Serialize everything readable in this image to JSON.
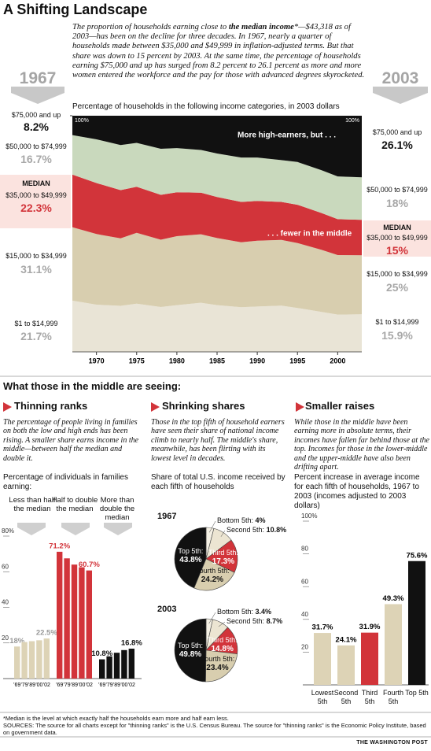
{
  "header": {
    "title": "A Shifting Landscape",
    "intro": [
      "The proportion of households earning close to ",
      "the median income",
      "*—$43,318 as of 2003—has been on the decline for three decades. In 1967, nearly a quarter of households made between $35,000 and $49,999 in inflation-adjusted terms. But that share was down to 15 percent by 2003. At the same time, the percentage of households earning $75,000 and up has surged from 8.2 percent to 26.1 percent as more and more women entered the workforce and the pay for those with advanced degrees skyrocketed."
    ]
  },
  "chart_data": [
    {
      "type": "area",
      "stacked": true,
      "subtitle": "Percentage of households in the following income categories, in 2003 dollars",
      "median_label": "MEDIAN",
      "annotations": [
        "More high-earners, but . . .",
        ". . . fewer in the middle"
      ],
      "x": [
        1967,
        1970,
        1973,
        1975,
        1978,
        1980,
        1983,
        1985,
        1988,
        1990,
        1993,
        1995,
        1998,
        2000,
        2003
      ],
      "xlim": [
        1967,
        2003
      ],
      "xticks": [
        1970,
        1975,
        1980,
        1985,
        1990,
        1995,
        2000
      ],
      "ylim": [
        0,
        100
      ],
      "yticks": [
        {
          "value": 100,
          "label": "100%"
        }
      ],
      "series": [
        {
          "name": "$1 to $14,999",
          "color": "#e9e4d6",
          "values": [
            21.7,
            20.0,
            19.5,
            20.4,
            19.0,
            19.8,
            20.8,
            19.8,
            18.9,
            19.2,
            19.6,
            18.6,
            16.9,
            15.8,
            15.9
          ],
          "value_labels": [
            "21.7%",
            null,
            null,
            null,
            null,
            null,
            null,
            null,
            null,
            null,
            null,
            null,
            null,
            null,
            "15.9%"
          ]
        },
        {
          "name": "$15,000 to $34,999",
          "color": "#d8ceaf",
          "values": [
            31.1,
            29.9,
            28.6,
            30.0,
            28.5,
            29.2,
            29.0,
            28.4,
            27.5,
            27.9,
            27.8,
            27.5,
            26.3,
            25.2,
            25.0
          ],
          "value_labels": [
            "31.1%",
            null,
            null,
            null,
            null,
            null,
            null,
            null,
            null,
            null,
            null,
            null,
            null,
            null,
            "25%"
          ]
        },
        {
          "name": "$35,000 to $49,999",
          "color": "#d2343a",
          "values": [
            22.3,
            21.6,
            20.4,
            19.5,
            19.0,
            18.6,
            17.6,
            17.4,
            17.1,
            16.8,
            16.1,
            16.2,
            15.6,
            15.2,
            15.0
          ],
          "value_labels": [
            "22.3%",
            null,
            null,
            null,
            null,
            null,
            null,
            null,
            null,
            null,
            null,
            null,
            null,
            null,
            "15%"
          ]
        },
        {
          "name": "$50,000 to $74,999",
          "color": "#c9d9bd",
          "values": [
            16.7,
            18.5,
            19.1,
            18.6,
            19.5,
            18.7,
            18.1,
            18.4,
            18.8,
            18.4,
            17.7,
            18.1,
            18.1,
            18.1,
            18.0
          ],
          "value_labels": [
            "16.7%",
            null,
            null,
            null,
            null,
            null,
            null,
            null,
            null,
            null,
            null,
            null,
            null,
            null,
            "18%"
          ]
        },
        {
          "name": "$75,000 and up",
          "color": "#111111",
          "values": [
            8.2,
            10.0,
            12.4,
            11.5,
            14.0,
            13.7,
            14.5,
            16.0,
            17.7,
            17.7,
            18.8,
            19.6,
            23.1,
            25.7,
            26.1
          ],
          "value_labels": [
            "8.2%",
            null,
            null,
            null,
            null,
            null,
            null,
            null,
            null,
            null,
            null,
            null,
            null,
            null,
            "26.1%"
          ]
        }
      ]
    },
    {
      "type": "bar",
      "heading": "Thinning ranks",
      "description": "The percentage of people living in families on both the low and high ends has been rising. A smaller share earns income in the middle—between half the median and double it.",
      "subtitle": "Percentage of individuals in families earning:",
      "categories": [
        "'69",
        "'79",
        "'89",
        "'00",
        "'02"
      ],
      "ylim": [
        0,
        80
      ],
      "yticks": [
        20,
        40,
        60,
        {
          "value": 80,
          "label": "80%"
        }
      ],
      "series": [
        {
          "name": "Less than half the median",
          "color": "#ddd3b6",
          "values": [
            18,
            20.5,
            21,
            21.5,
            22.5
          ],
          "value_labels": [
            "18%",
            null,
            null,
            null,
            "22.5%"
          ]
        },
        {
          "name": "Half to double the median",
          "color": "#d2343a",
          "values": [
            71.2,
            67.5,
            64,
            62.5,
            60.7
          ],
          "value_labels": [
            "71.2%",
            null,
            null,
            null,
            "60.7%"
          ]
        },
        {
          "name": "More than double the median",
          "color": "#111111",
          "values": [
            10.8,
            12.5,
            14.5,
            16,
            16.8
          ],
          "value_labels": [
            "10.8%",
            null,
            null,
            null,
            "16.8%"
          ]
        }
      ]
    },
    {
      "type": "pie",
      "heading": "Shrinking shares",
      "description": "Those in the top fifth of household earners have seen their share of national income climb to nearly half. The middle's share, meanwhile, has been flirting with its lowest level in decades.",
      "subtitle": "Share of total U.S. income received by each fifth of households",
      "title": "1967",
      "categories": [
        "Bottom 5th:",
        "Second 5th:",
        "Third 5th:",
        "Fourth 5th:",
        "Top 5th:"
      ],
      "values": [
        4,
        10.8,
        17.3,
        24.2,
        43.8
      ],
      "value_labels": [
        "4%",
        "10.8%",
        "17.3%",
        "24.2%",
        "43.8%"
      ],
      "colors": [
        "#f4f0e4",
        "#ece5d2",
        "#d2343a",
        "#d8ceaf",
        "#111111"
      ]
    },
    {
      "type": "pie",
      "title": "2003",
      "categories": [
        "Bottom 5th:",
        "Second 5th:",
        "Third 5th:",
        "Fourth 5th:",
        "Top 5th:"
      ],
      "values": [
        3.4,
        8.7,
        14.8,
        23.4,
        49.8
      ],
      "value_labels": [
        "3.4%",
        "8.7%",
        "14.8%",
        "23.4%",
        "49.8%"
      ],
      "colors": [
        "#f4f0e4",
        "#ece5d2",
        "#d2343a",
        "#d8ceaf",
        "#111111"
      ]
    },
    {
      "type": "bar",
      "heading": "Smaller raises",
      "description": "While those in the middle have been earning more in absolute terms, their incomes have fallen far behind those at the top. Incomes for those in the lower-middle and the upper-middle have also been drifting apart.",
      "subtitle": "Percent increase in average income for each fifth of households, 1967 to 2003 (incomes adjusted to 2003 dollars)",
      "categories": [
        "Lowest 5th",
        "Second 5th",
        "Third 5th",
        "Fourth 5th",
        "Top 5th"
      ],
      "values": [
        31.7,
        24.1,
        31.9,
        49.3,
        75.6
      ],
      "value_labels": [
        "31.7%",
        "24.1%",
        "31.9%",
        "49.3%",
        "75.6%"
      ],
      "colors": [
        "#ddd3b6",
        "#ddd3b6",
        "#d2343a",
        "#ddd3b6",
        "#111111"
      ],
      "ylim": [
        0,
        100
      ],
      "yticks": [
        20,
        40,
        60,
        80,
        {
          "value": 100,
          "label": "100%"
        }
      ]
    }
  ],
  "section_title": "What those in the middle are seeing:",
  "footer": {
    "note": "*Median is the level at which exactly half the households earn more and half earn less.",
    "sources": "SOURCES: The source for all charts except for \"thinning ranks\" is the U.S. Census Bureau. The source for \"thinning ranks\" is the Economic Policy Institute, based on government data.",
    "credit": "THE WASHINGTON POST"
  }
}
